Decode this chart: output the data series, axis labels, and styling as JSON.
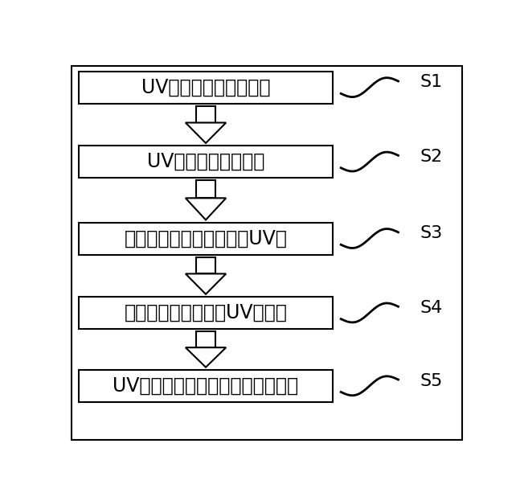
{
  "background_color": "#ffffff",
  "border_color": "#000000",
  "steps": [
    {
      "label": "UV压印制作微透镜阵列",
      "step_id": "S1"
    },
    {
      "label": "UV压印制作纳米阵列",
      "step_id": "S2"
    },
    {
      "label": "在上述微透镜阵列上旋涂UV胶",
      "step_id": "S3"
    },
    {
      "label": "将纳米阵列置于上述UV胶层上",
      "step_id": "S4"
    },
    {
      "label": "UV压印制备微透镜纳米孔混合结构",
      "step_id": "S5"
    }
  ],
  "fig_width": 6.47,
  "fig_height": 6.23,
  "font_size": 17,
  "step_font_size": 16,
  "text_color": "#000000",
  "border_linewidth": 1.5,
  "outer_border_linewidth": 1.5
}
